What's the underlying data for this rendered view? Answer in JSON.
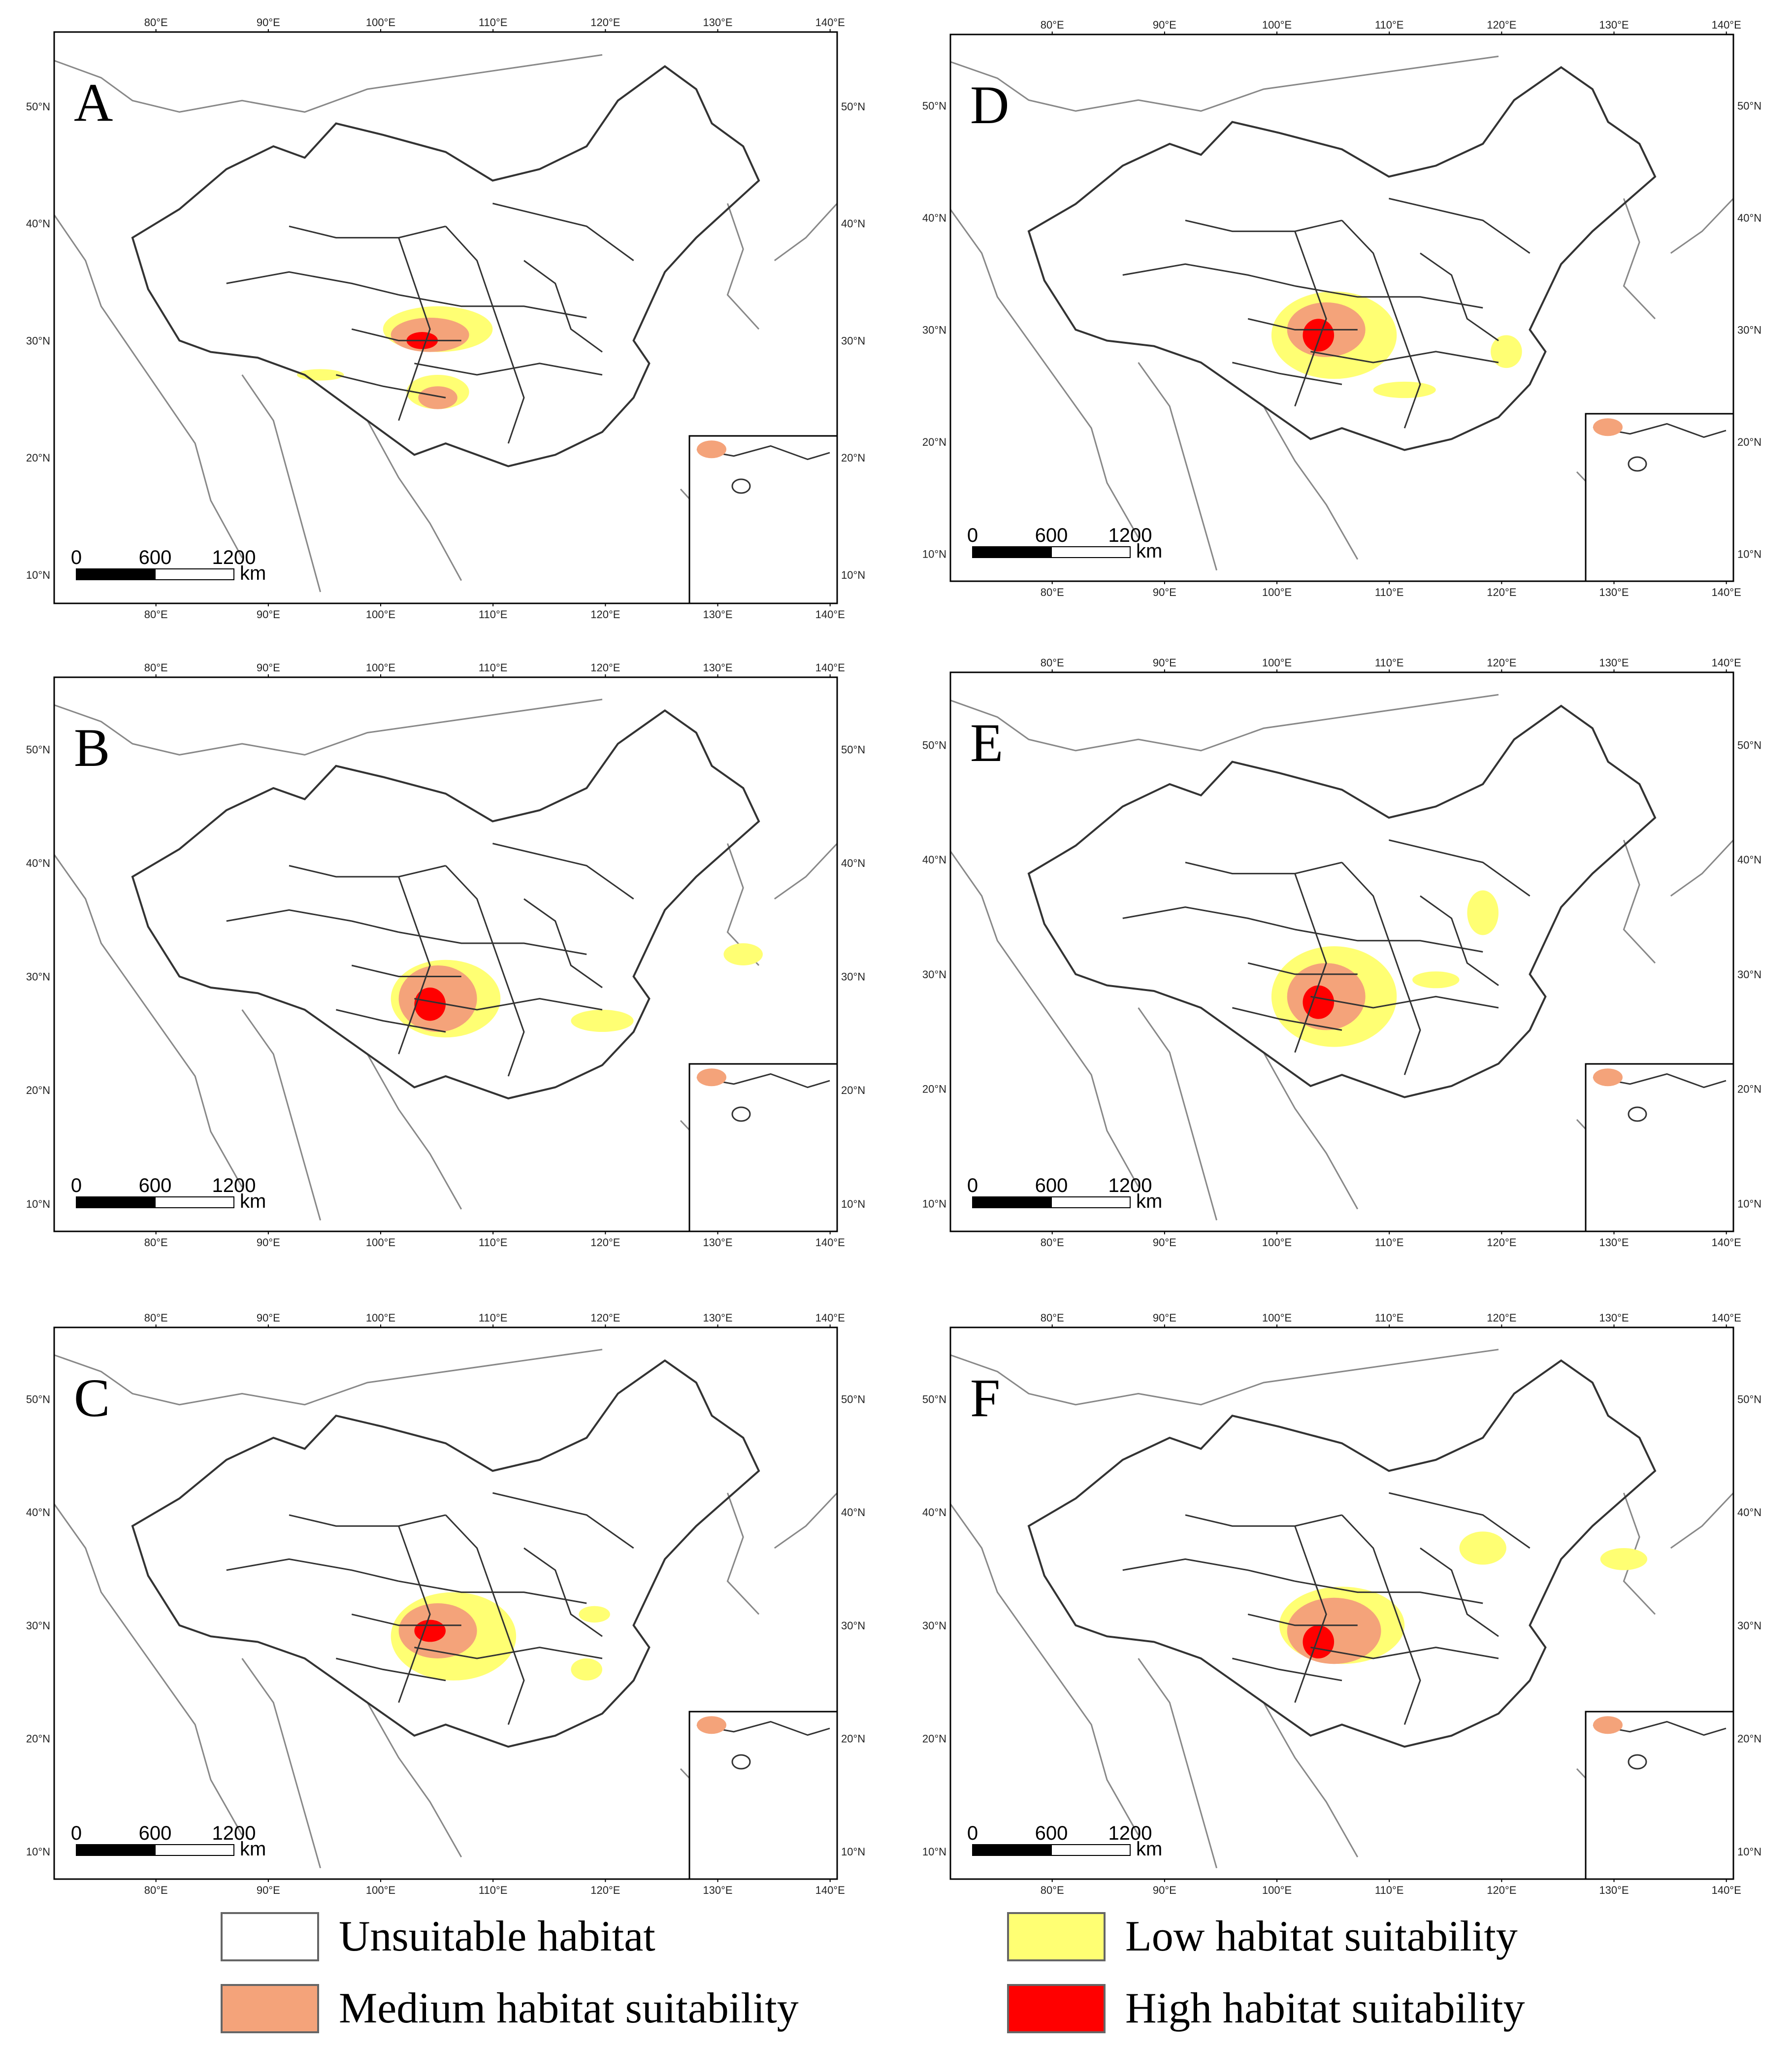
{
  "panels": [
    {
      "label": "A"
    },
    {
      "label": "B"
    },
    {
      "label": "C"
    },
    {
      "label": "D"
    },
    {
      "label": "E"
    },
    {
      "label": "F"
    }
  ],
  "axes": {
    "lon_ticks": [
      "80°E",
      "90°E",
      "100°E",
      "110°E",
      "120°E",
      "130°E",
      "140°E"
    ],
    "lat_ticks": [
      "50°N",
      "40°N",
      "30°N",
      "20°N",
      "10°N"
    ]
  },
  "scalebar": {
    "zero": "0",
    "mid": "600",
    "end": "1200",
    "unit": "km"
  },
  "legend": [
    {
      "label": "Unsuitable habitat",
      "color": "#ffffff"
    },
    {
      "label": "Low habitat suitability",
      "color": "#ffff73"
    },
    {
      "label": "Medium habitat suitability",
      "color": "#f4a37a"
    },
    {
      "label": "High habitat suitability",
      "color": "#ff0000"
    }
  ],
  "colors": {
    "border": "#333333",
    "coast": "#888888",
    "frame": "#000000"
  }
}
